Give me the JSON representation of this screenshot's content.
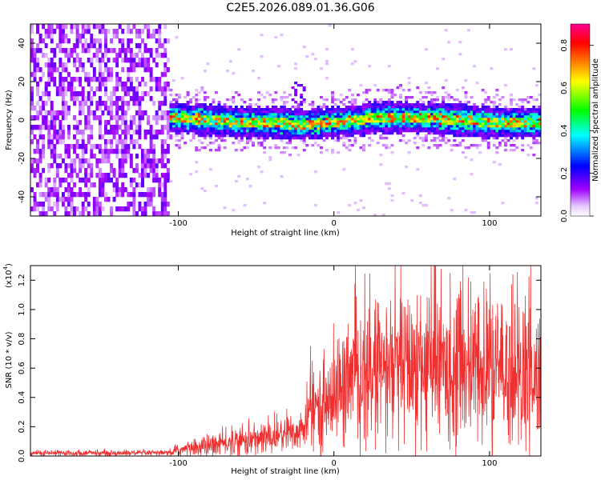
{
  "title": "C2E5.2026.089.01.36.G06",
  "chart_data": [
    {
      "type": "heatmap",
      "xlabel": "Height of straight line (km)",
      "ylabel": "Frequency (Hz)",
      "xlim": [
        -195,
        133
      ],
      "ylim": [
        -50,
        50
      ],
      "xticks": [
        "-100",
        "0",
        "100"
      ],
      "yticks": [
        "-40",
        "-20",
        "0",
        "20",
        "40"
      ],
      "band_center_freq": 0,
      "band_half_width_hz": 6,
      "noise_region_x": [
        -195,
        -105
      ],
      "colorbar": {
        "label": "Normalized spectral amplitude",
        "ticks": [
          "0.0",
          "0.2",
          "0.4",
          "0.6",
          "0.8"
        ],
        "range": [
          0,
          0.9
        ],
        "colors": [
          "#ffffff",
          "#a000ff",
          "#0000ff",
          "#00ffff",
          "#00ff00",
          "#ffff00",
          "#ff8000",
          "#ff0000",
          "#ff0090"
        ]
      },
      "grid": false
    },
    {
      "type": "line",
      "xlabel": "Height of straight line (km)",
      "ylabel": "SNR (10 * v/v)",
      "scale_label": "(x10",
      "scale_exp": "4",
      "scale_close": ")",
      "xlim": [
        -195,
        133
      ],
      "ylim": [
        0,
        1.3
      ],
      "xticks": [
        "-100",
        "0",
        "100"
      ],
      "yticks": [
        "0.0",
        "0.2",
        "0.4",
        "0.6",
        "0.8",
        "1.0",
        "1.2"
      ],
      "line_color": "#ee3030",
      "envelope": {
        "x": [
          -195,
          -105,
          -100,
          -80,
          -60,
          -40,
          -20,
          -15,
          -5,
          0,
          10,
          20,
          30,
          40,
          60,
          80,
          100,
          120,
          133
        ],
        "mean": [
          0.02,
          0.02,
          0.04,
          0.07,
          0.1,
          0.13,
          0.18,
          0.3,
          0.36,
          0.42,
          0.5,
          0.55,
          0.58,
          0.6,
          0.62,
          0.6,
          0.58,
          0.55,
          0.52
        ],
        "spread": [
          0.01,
          0.01,
          0.02,
          0.04,
          0.05,
          0.06,
          0.08,
          0.13,
          0.15,
          0.18,
          0.22,
          0.24,
          0.26,
          0.27,
          0.27,
          0.27,
          0.27,
          0.26,
          0.25
        ]
      },
      "peaks": [
        {
          "x": 65,
          "y": 1.3
        },
        {
          "x": 115,
          "y": 1.24
        },
        {
          "x": 88,
          "y": 1.19
        },
        {
          "x": 28,
          "y": 1.05
        },
        {
          "x": 45,
          "y": 1.02
        },
        {
          "x": -15,
          "y": 0.75
        }
      ],
      "grid": false
    }
  ]
}
